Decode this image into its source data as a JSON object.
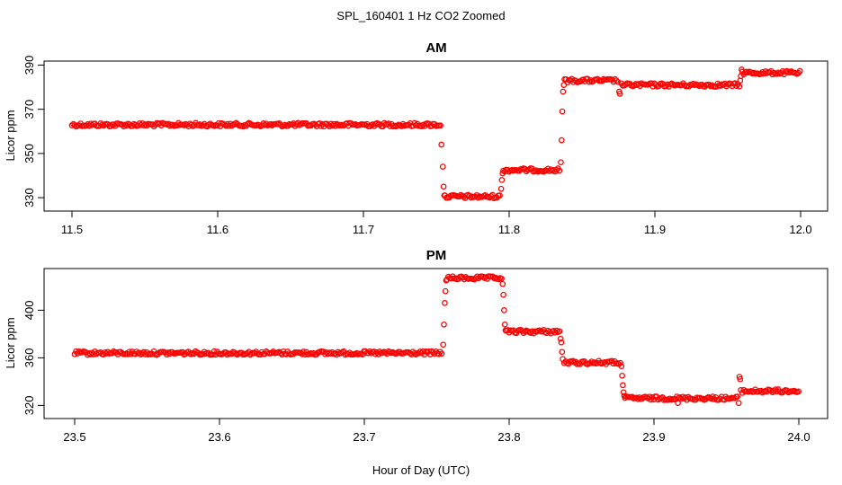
{
  "figure": {
    "title": "SPL_160401  1 Hz CO2 Zoomed",
    "xlabel": "Hour of Day (UTC)"
  },
  "chart_data": [
    {
      "type": "scatter",
      "title": "AM",
      "ylabel": "Licor ppm",
      "xlim": [
        11.5,
        12.0
      ],
      "ylim": [
        328,
        391
      ],
      "xticks": [
        11.5,
        11.6,
        11.7,
        11.8,
        11.9,
        12.0
      ],
      "xtick_labels": [
        "11.5",
        "11.6",
        "11.7",
        "11.8",
        "11.9",
        "12.0"
      ],
      "yticks": [
        330,
        350,
        370,
        390
      ],
      "ytick_labels": [
        "330",
        "350",
        "370",
        "390"
      ],
      "marker": "open-circle",
      "color": "#ff0000",
      "series": [
        {
          "name": "plateau",
          "x": [
            11.5,
            11.753
          ],
          "y": [
            363,
            363
          ]
        },
        {
          "name": "transition",
          "x": [
            11.7535,
            11.7545,
            11.755,
            11.7555
          ],
          "y": [
            354,
            344,
            335,
            331
          ]
        },
        {
          "name": "plateau",
          "x": [
            11.756,
            11.794
          ],
          "y": [
            330.5,
            330.5
          ]
        },
        {
          "name": "transition",
          "x": [
            11.7945,
            11.795,
            11.7955
          ],
          "y": [
            334,
            338,
            341
          ]
        },
        {
          "name": "plateau",
          "x": [
            11.796,
            11.835
          ],
          "y": [
            342.5,
            342.5
          ]
        },
        {
          "name": "transition",
          "x": [
            11.8355,
            11.836,
            11.8365,
            11.837,
            11.8375
          ],
          "y": [
            346,
            356,
            369,
            378,
            381
          ]
        },
        {
          "name": "plateau",
          "x": [
            11.838,
            11.875
          ],
          "y": [
            383,
            383
          ]
        },
        {
          "name": "transition",
          "x": [
            11.8755,
            11.876
          ],
          "y": [
            378,
            377
          ]
        },
        {
          "name": "plateau",
          "x": [
            11.877,
            11.958
          ],
          "y": [
            381,
            381
          ]
        },
        {
          "name": "transition",
          "x": [
            11.9585,
            11.959,
            11.9595
          ],
          "y": [
            383,
            385,
            388
          ]
        },
        {
          "name": "plateau",
          "x": [
            11.96,
            12.0
          ],
          "y": [
            386.5,
            386.5
          ]
        }
      ]
    },
    {
      "type": "scatter",
      "title": "PM",
      "ylabel": "Licor ppm",
      "xlim": [
        23.5,
        24.0
      ],
      "ylim": [
        315,
        432
      ],
      "xticks": [
        23.5,
        23.6,
        23.7,
        23.8,
        23.9,
        24.0
      ],
      "xtick_labels": [
        "23.5",
        "23.6",
        "23.7",
        "23.8",
        "23.9",
        "24.0"
      ],
      "yticks": [
        320,
        360,
        400
      ],
      "ytick_labels": [
        "320",
        "360",
        "400"
      ],
      "marker": "open-circle",
      "color": "#ff0000",
      "series": [
        {
          "name": "plateau",
          "x": [
            23.5,
            23.754
          ],
          "y": [
            364,
            364
          ]
        },
        {
          "name": "transition",
          "x": [
            23.7545,
            23.755,
            23.7555,
            23.756,
            23.7565
          ],
          "y": [
            371,
            388,
            406,
            416,
            425
          ]
        },
        {
          "name": "plateau",
          "x": [
            23.757,
            23.795
          ],
          "y": [
            427,
            427
          ]
        },
        {
          "name": "transition",
          "x": [
            23.7955,
            23.796,
            23.7965,
            23.797,
            23.7975
          ],
          "y": [
            422,
            413,
            400,
            388,
            383
          ]
        },
        {
          "name": "plateau",
          "x": [
            23.798,
            23.835
          ],
          "y": [
            382,
            382
          ]
        },
        {
          "name": "transition",
          "x": [
            23.8355,
            23.836,
            23.8365,
            23.837
          ],
          "y": [
            376,
            373,
            365,
            359
          ]
        },
        {
          "name": "plateau",
          "x": [
            23.838,
            23.877
          ],
          "y": [
            356,
            356
          ]
        },
        {
          "name": "transition",
          "x": [
            23.8775,
            23.878,
            23.8785,
            23.879,
            23.8795
          ],
          "y": [
            353,
            345,
            337,
            331,
            328
          ]
        },
        {
          "name": "plateau",
          "x": [
            23.88,
            23.958
          ],
          "y": [
            326,
            326
          ]
        },
        {
          "name": "transition",
          "x": [
            23.9165,
            23.9585,
            23.959,
            23.9595
          ],
          "y": [
            322,
            322,
            344,
            342
          ]
        },
        {
          "name": "plateau",
          "x": [
            23.96,
            24.0
          ],
          "y": [
            332,
            332
          ]
        }
      ]
    }
  ]
}
